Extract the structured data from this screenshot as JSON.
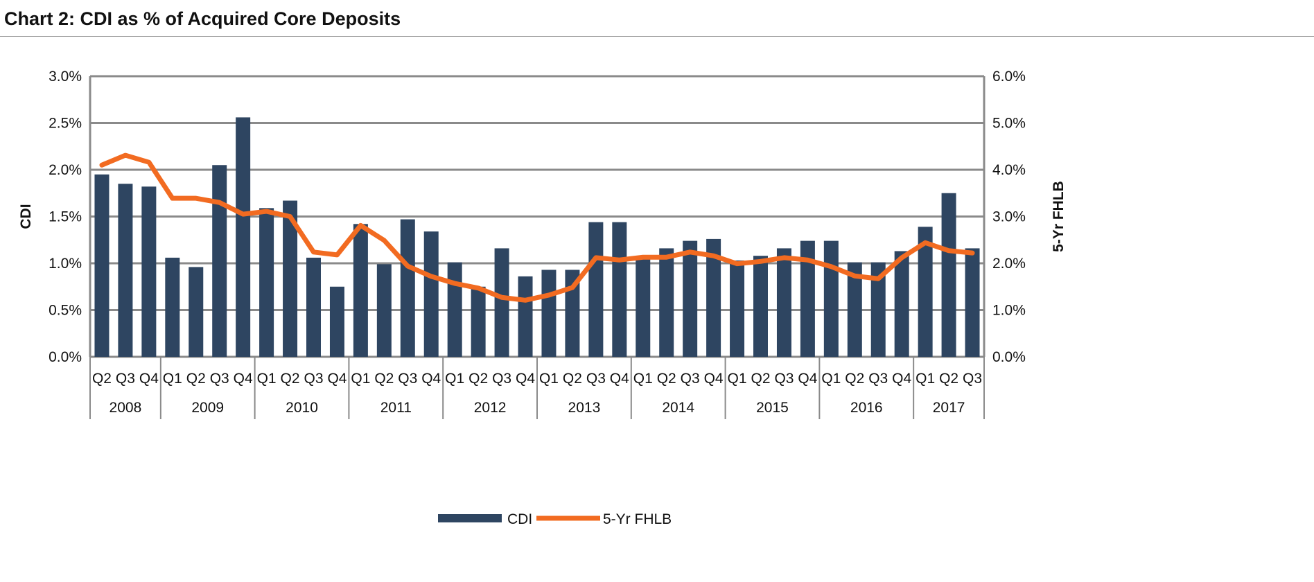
{
  "title": "Chart 2: CDI as % of Acquired Core Deposits",
  "chart_data": {
    "type": "bar+line",
    "title": "Chart 2: CDI as % of Acquired Core Deposits",
    "ylabel_left": "CDI",
    "ylabel_right": "5-Yr FHLB",
    "ylim_left": [
      0,
      3.0
    ],
    "ylim_right": [
      0,
      6.0
    ],
    "yticks_left": [
      "0.0%",
      "0.5%",
      "1.0%",
      "1.5%",
      "2.0%",
      "2.5%",
      "3.0%"
    ],
    "yticks_right": [
      "0.0%",
      "1.0%",
      "2.0%",
      "3.0%",
      "4.0%",
      "5.0%",
      "6.0%"
    ],
    "grid": true,
    "legend_position": "bottom",
    "years": [
      {
        "label": "2008",
        "n": 3
      },
      {
        "label": "2009",
        "n": 4
      },
      {
        "label": "2010",
        "n": 4
      },
      {
        "label": "2011",
        "n": 4
      },
      {
        "label": "2012",
        "n": 4
      },
      {
        "label": "2013",
        "n": 4
      },
      {
        "label": "2014",
        "n": 4
      },
      {
        "label": "2015",
        "n": 4
      },
      {
        "label": "2016",
        "n": 4
      },
      {
        "label": "2017",
        "n": 3
      }
    ],
    "categories": [
      "Q2",
      "Q3",
      "Q4",
      "Q1",
      "Q2",
      "Q3",
      "Q4",
      "Q1",
      "Q2",
      "Q3",
      "Q4",
      "Q1",
      "Q2",
      "Q3",
      "Q4",
      "Q1",
      "Q2",
      "Q3",
      "Q4",
      "Q1",
      "Q2",
      "Q3",
      "Q4",
      "Q1",
      "Q2",
      "Q3",
      "Q4",
      "Q1",
      "Q2",
      "Q3",
      "Q4",
      "Q1",
      "Q2",
      "Q3",
      "Q4",
      "Q1",
      "Q2",
      "Q3"
    ],
    "series": [
      {
        "name": "CDI",
        "type": "bar",
        "axis": "left",
        "color": "#2e4561",
        "values": [
          1.95,
          1.85,
          1.82,
          1.06,
          0.96,
          2.05,
          2.56,
          1.59,
          1.67,
          1.06,
          0.75,
          1.42,
          0.99,
          1.47,
          1.34,
          1.01,
          0.75,
          1.16,
          0.86,
          0.93,
          0.93,
          1.44,
          1.44,
          1.06,
          1.16,
          1.24,
          1.26,
          1.03,
          1.08,
          1.16,
          1.24,
          1.24,
          1.01,
          1.01,
          1.13,
          1.39,
          1.75,
          1.16
        ]
      },
      {
        "name": "5-Yr FHLB",
        "type": "line",
        "axis": "right",
        "color": "#f26b21",
        "values": [
          4.1,
          4.31,
          4.16,
          3.39,
          3.39,
          3.3,
          3.05,
          3.11,
          3.0,
          2.24,
          2.18,
          2.81,
          2.49,
          1.94,
          1.72,
          1.57,
          1.47,
          1.27,
          1.21,
          1.32,
          1.48,
          2.12,
          2.07,
          2.13,
          2.13,
          2.24,
          2.16,
          1.99,
          2.04,
          2.12,
          2.07,
          1.93,
          1.73,
          1.67,
          2.12,
          2.44,
          2.27,
          2.22
        ]
      }
    ]
  }
}
